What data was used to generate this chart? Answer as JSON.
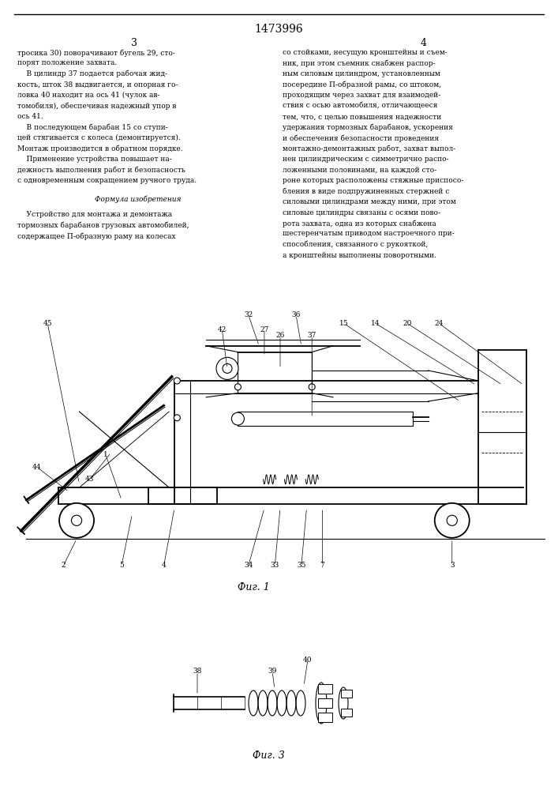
{
  "patent_number": "1473996",
  "page_left": "3",
  "page_right": "4",
  "text_left_col": [
    "тросика 30) поворачивают бугель 29, сто-",
    "порят положение захвата.",
    "    В цилиндр 37 подается рабочая жид-",
    "кость, шток 38 выдвигается, и опорная го-",
    "ловка 40 находит на ось 41 (чулок ав-",
    "томобиля), обеспечивая надежный упор в",
    "ось 41.",
    "    В последующем барабан 15 со ступи-",
    "цей стягивается с колеса (демонтируется).",
    "Монтаж производится в обратном порядке.",
    "    Применение устройства повышает на-",
    "дежность выполнения работ и безопасность",
    "с одновременным сокращением ручного труда."
  ],
  "formula_header": "Формула изобретения",
  "formula_text": [
    "    Устройство для монтажа и демонтажа",
    "тормозных барабанов грузовых автомобилей,",
    "содержащее П-образную раму на колесах"
  ],
  "text_right_col": [
    "со стойками, несущую кронштейны и съем-",
    "ник, при этом съемник снабжен распор-",
    "ным силовым цилиндром, установленным",
    "посередине П-образной рамы, со штоком,",
    "проходящим через захват для взаимодей-",
    "ствия с осью автомобиля, отличающееся",
    "тем, что, с целью повышения надежности",
    "удержания тормозных барабанов, ускорения",
    "и обеспечения безопасности проведения",
    "монтажно-демонтажных работ, захват выпол-",
    "нен цилиндрическим с симметрично распо-",
    "ложенными половинами, на каждой сто-",
    "роне которых расположены стяжные приспосо-",
    "бления в виде подпружиненных стержней с",
    "силовыми цилиндрами между ними, при этом",
    "силовые цилиндры связаны с осями пово-",
    "рота захвата, одна из которых снабжена",
    "шестеренчатым приводом настроечного при-",
    "способления, связанного с рукояткой,",
    "а кронштейны выполнены поворотными."
  ],
  "fig1_caption": "Фиг. 1",
  "fig3_caption": "Фиг. 3"
}
